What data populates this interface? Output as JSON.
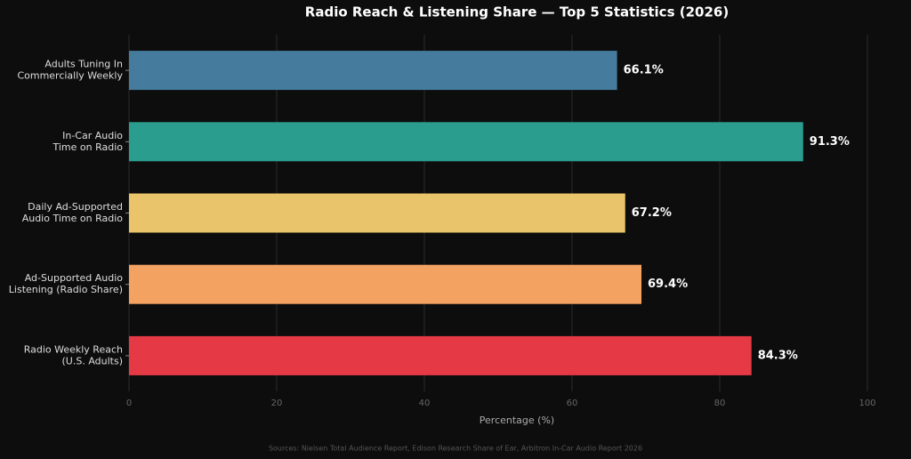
{
  "chart_data": {
    "type": "barh",
    "title": "Radio Reach & Listening Share — Top 5 Statistics (2026)",
    "categories": [
      [
        "Adults Tuning In",
        "Commercially Weekly"
      ],
      [
        "In-Car Audio",
        "Time on Radio"
      ],
      [
        "Daily Ad-Supported",
        "Audio Time on Radio"
      ],
      [
        "Ad-Supported Audio",
        "Listening (Radio Share)"
      ],
      [
        "Radio Weekly Reach",
        "(U.S. Adults)"
      ]
    ],
    "values": [
      66.1,
      91.3,
      67.2,
      69.4,
      84.3
    ],
    "value_labels": [
      "66.1%",
      "91.3%",
      "67.2%",
      "69.4%",
      "84.3%"
    ],
    "colors": [
      "#457b9d",
      "#2a9d8f",
      "#e9c46a",
      "#f4a261",
      "#e63946"
    ],
    "xlabel": "Percentage (%)",
    "xlim": [
      0,
      100
    ],
    "xticks": [
      0,
      20,
      40,
      60,
      80,
      100
    ],
    "grid": true,
    "source": "Sources: Nielsen Total Audience Report, Edison Research Share of Ear, Arbitron In-Car Audio Report 2026"
  }
}
